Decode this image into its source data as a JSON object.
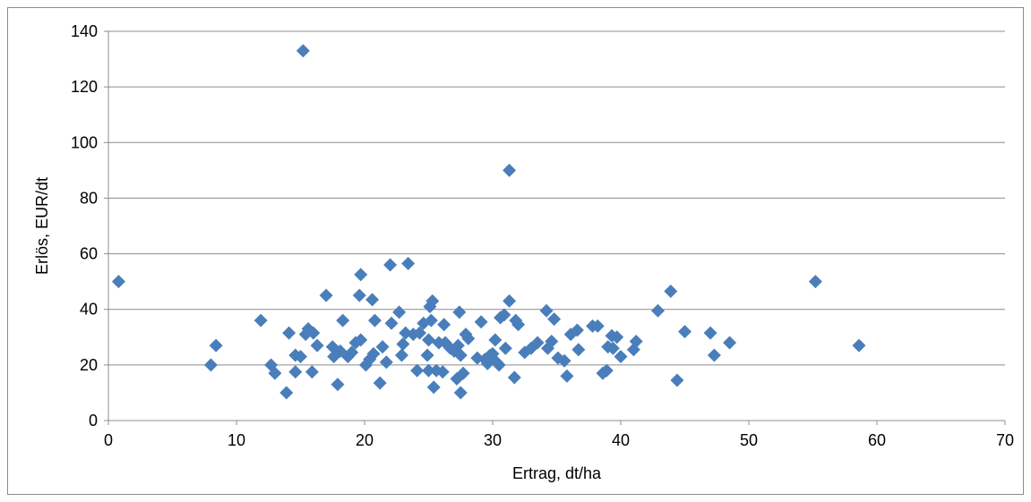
{
  "chart_data": {
    "type": "scatter",
    "title": "",
    "xlabel": "Ertrag, dt/ha",
    "ylabel": "Erlös, EUR/dt",
    "xlim": [
      0,
      70
    ],
    "ylim": [
      0,
      140
    ],
    "x_ticks": [
      0,
      10,
      20,
      30,
      40,
      50,
      60,
      70
    ],
    "y_ticks": [
      0,
      20,
      40,
      60,
      80,
      100,
      120,
      140
    ],
    "grid": "horizontal",
    "legend": "none",
    "marker": "diamond",
    "marker_color": "#4a7ebb",
    "series": [
      {
        "points": [
          [
            0.8,
            50
          ],
          [
            8,
            20
          ],
          [
            8.4,
            27
          ],
          [
            11.9,
            36
          ],
          [
            12.7,
            20
          ],
          [
            13,
            17
          ],
          [
            13.9,
            10
          ],
          [
            14.1,
            31.5
          ],
          [
            14.6,
            17.5
          ],
          [
            14.6,
            23.5
          ],
          [
            15,
            23
          ],
          [
            15.2,
            133
          ],
          [
            15.4,
            31
          ],
          [
            15.6,
            33
          ],
          [
            15.9,
            17.5
          ],
          [
            16,
            31.5
          ],
          [
            16.3,
            27
          ],
          [
            17,
            45
          ],
          [
            17.5,
            26.5
          ],
          [
            17.6,
            23
          ],
          [
            17.9,
            13
          ],
          [
            18.1,
            25
          ],
          [
            18.3,
            36
          ],
          [
            18.7,
            23
          ],
          [
            19,
            24.5
          ],
          [
            19.3,
            28
          ],
          [
            19.6,
            45
          ],
          [
            19.7,
            52.5
          ],
          [
            19.7,
            29
          ],
          [
            20.1,
            20
          ],
          [
            20.4,
            22
          ],
          [
            20.6,
            43.5
          ],
          [
            20.7,
            24
          ],
          [
            20.8,
            36
          ],
          [
            21.2,
            13.5
          ],
          [
            21.4,
            26.5
          ],
          [
            21.7,
            21
          ],
          [
            22,
            56
          ],
          [
            22.1,
            35
          ],
          [
            22.7,
            39
          ],
          [
            22.9,
            23.5
          ],
          [
            23,
            27.5
          ],
          [
            23.2,
            31.5
          ],
          [
            23.4,
            56.5
          ],
          [
            23.8,
            31
          ],
          [
            24.1,
            18
          ],
          [
            24.3,
            31.5
          ],
          [
            24.6,
            35
          ],
          [
            24.9,
            23.5
          ],
          [
            25,
            18
          ],
          [
            25,
            29
          ],
          [
            25.1,
            41
          ],
          [
            25.2,
            36
          ],
          [
            25.3,
            43
          ],
          [
            25.4,
            12
          ],
          [
            25.6,
            18
          ],
          [
            25.8,
            28
          ],
          [
            26.1,
            17.5
          ],
          [
            26.2,
            34.5
          ],
          [
            26.3,
            28
          ],
          [
            26.7,
            26
          ],
          [
            27,
            25
          ],
          [
            27.2,
            15
          ],
          [
            27.3,
            27
          ],
          [
            27.4,
            39
          ],
          [
            27.5,
            10
          ],
          [
            27.5,
            23.5
          ],
          [
            27.7,
            17
          ],
          [
            27.9,
            31
          ],
          [
            28.1,
            29.5
          ],
          [
            28.8,
            22.5
          ],
          [
            29.1,
            35.5
          ],
          [
            29.4,
            22
          ],
          [
            29.6,
            20.5
          ],
          [
            29.8,
            23.5
          ],
          [
            30,
            24
          ],
          [
            30.2,
            29
          ],
          [
            30.3,
            21
          ],
          [
            30.5,
            20
          ],
          [
            30.6,
            37
          ],
          [
            30.9,
            38
          ],
          [
            31,
            26
          ],
          [
            31.3,
            90
          ],
          [
            31.3,
            43
          ],
          [
            31.7,
            15.5
          ],
          [
            31.8,
            36
          ],
          [
            32,
            34.5
          ],
          [
            32.5,
            24.5
          ],
          [
            33,
            26
          ],
          [
            33.5,
            28
          ],
          [
            34.2,
            39.5
          ],
          [
            34.3,
            26
          ],
          [
            34.6,
            28.5
          ],
          [
            34.8,
            36.5
          ],
          [
            35.1,
            22.5
          ],
          [
            35.6,
            21.5
          ],
          [
            35.8,
            16
          ],
          [
            36.1,
            31
          ],
          [
            36.6,
            32.5
          ],
          [
            36.7,
            25.5
          ],
          [
            37.8,
            34
          ],
          [
            38.2,
            34
          ],
          [
            38.6,
            17
          ],
          [
            38.9,
            18
          ],
          [
            39,
            26.5
          ],
          [
            39.3,
            30.5
          ],
          [
            39.4,
            26
          ],
          [
            39.7,
            30
          ],
          [
            40,
            23
          ],
          [
            41,
            25.5
          ],
          [
            41.2,
            28.5
          ],
          [
            42.9,
            39.5
          ],
          [
            43.9,
            46.5
          ],
          [
            44.4,
            14.5
          ],
          [
            45,
            32
          ],
          [
            47,
            31.5
          ],
          [
            47.3,
            23.5
          ],
          [
            48.5,
            28
          ],
          [
            55.2,
            50
          ],
          [
            58.6,
            27
          ]
        ]
      }
    ]
  }
}
